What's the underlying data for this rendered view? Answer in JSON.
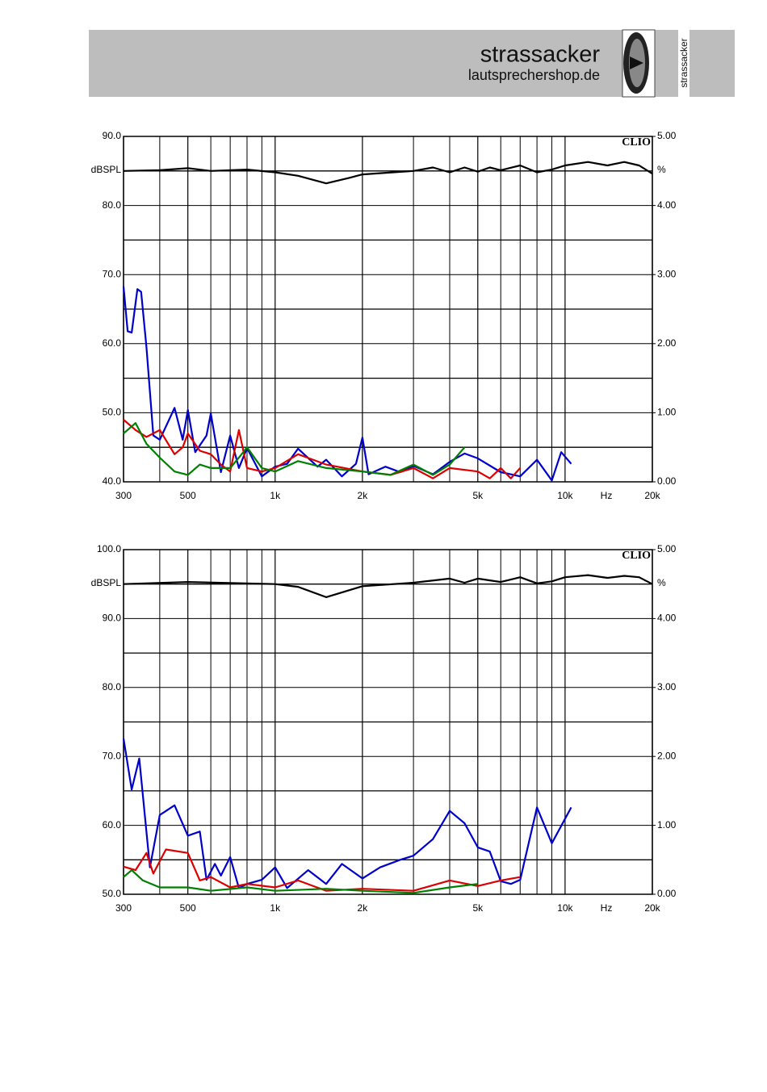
{
  "header": {
    "brand": "strassacker",
    "site": "lautsprechershop.de",
    "vertical_brand": "strassacker"
  },
  "chart_data": [
    {
      "type": "line",
      "watermark": "CLIO",
      "ylabel": "dBSPL",
      "y2label": "%",
      "xunit": "Hz",
      "xlog": true,
      "xlim": [
        300,
        20000
      ],
      "xticks": [
        300,
        500,
        {
          "value": 1000,
          "label": "1k"
        },
        {
          "value": 2000,
          "label": "2k"
        },
        {
          "value": 5000,
          "label": "5k"
        },
        {
          "value": 10000,
          "label": "10k"
        },
        {
          "value": 20000,
          "label": "20k"
        }
      ],
      "xminor": [
        400,
        600,
        700,
        800,
        900,
        3000,
        4000,
        6000,
        7000,
        8000,
        9000
      ],
      "ylim": [
        40,
        90
      ],
      "yticks": [
        {
          "value": 40,
          "label": "40.0"
        },
        {
          "value": 50,
          "label": "50.0"
        },
        {
          "value": 60,
          "label": "60.0"
        },
        {
          "value": 70,
          "label": "70.0"
        },
        {
          "value": 80,
          "label": "80.0"
        },
        {
          "value": 90,
          "label": "90.0"
        }
      ],
      "yminor": [
        45,
        55,
        65,
        75,
        85
      ],
      "y2lim": [
        0,
        5
      ],
      "y2ticks": [
        {
          "value": 0,
          "label": "0.00"
        },
        {
          "value": 1,
          "label": "1.00"
        },
        {
          "value": 2,
          "label": "2.00"
        },
        {
          "value": 3,
          "label": "3.00"
        },
        {
          "value": 4,
          "label": "4.00"
        },
        {
          "value": 5,
          "label": "5.00"
        }
      ],
      "series": [
        {
          "color": "#000000",
          "axis": "y",
          "x": [
            300,
            400,
            500,
            600,
            800,
            1000,
            1200,
            1500,
            1800,
            2000,
            3000,
            3500,
            4000,
            4500,
            5000,
            5500,
            6000,
            7000,
            8000,
            9000,
            10000,
            12000,
            14000,
            16000,
            18000,
            20000
          ],
          "values": [
            85.0,
            85.1,
            85.4,
            85.0,
            85.2,
            84.8,
            84.3,
            83.2,
            84.0,
            84.5,
            85.0,
            85.5,
            84.8,
            85.5,
            84.9,
            85.5,
            85.1,
            85.8,
            84.8,
            85.2,
            85.8,
            86.3,
            85.8,
            86.3,
            85.8,
            84.6
          ]
        },
        {
          "color": "#0000cc",
          "axis": "y2",
          "x": [
            300,
            310,
            320,
            335,
            345,
            360,
            380,
            400,
            450,
            480,
            500,
            530,
            580,
            600,
            650,
            700,
            750,
            800,
            900,
            1000,
            1100,
            1200,
            1400,
            1500,
            1700,
            1900,
            2000,
            2100,
            2400,
            2700,
            3000,
            3500,
            4000,
            4500,
            5000,
            6000,
            7000,
            8000,
            9000,
            9700,
            10500
          ],
          "values": [
            2.83,
            2.18,
            2.16,
            2.79,
            2.75,
            1.95,
            0.67,
            0.61,
            1.07,
            0.61,
            1.04,
            0.43,
            0.67,
            0.99,
            0.14,
            0.67,
            0.2,
            0.49,
            0.08,
            0.22,
            0.26,
            0.48,
            0.22,
            0.32,
            0.08,
            0.26,
            0.64,
            0.11,
            0.22,
            0.14,
            0.23,
            0.11,
            0.29,
            0.41,
            0.34,
            0.14,
            0.08,
            0.32,
            0.02,
            0.43,
            0.26
          ]
        },
        {
          "color": "#dd0000",
          "axis": "y2",
          "x": [
            300,
            330,
            360,
            400,
            450,
            480,
            500,
            550,
            600,
            650,
            700,
            750,
            800,
            900,
            1000,
            1200,
            1500,
            2000,
            2500,
            3000,
            3500,
            4000,
            5000,
            5500,
            6000,
            6500,
            7000
          ],
          "values": [
            0.9,
            0.75,
            0.65,
            0.75,
            0.4,
            0.5,
            0.7,
            0.45,
            0.4,
            0.25,
            0.15,
            0.75,
            0.2,
            0.15,
            0.2,
            0.4,
            0.25,
            0.15,
            0.1,
            0.2,
            0.05,
            0.2,
            0.15,
            0.05,
            0.2,
            0.05,
            0.2
          ]
        },
        {
          "color": "#008000",
          "axis": "y2",
          "x": [
            300,
            330,
            360,
            400,
            450,
            500,
            550,
            600,
            700,
            750,
            800,
            900,
            1000,
            1200,
            1500,
            2000,
            2500,
            3000,
            3500,
            4000,
            4500
          ],
          "values": [
            0.7,
            0.85,
            0.55,
            0.35,
            0.15,
            0.1,
            0.25,
            0.2,
            0.2,
            0.35,
            0.5,
            0.2,
            0.15,
            0.3,
            0.2,
            0.15,
            0.1,
            0.25,
            0.1,
            0.25,
            0.5
          ]
        }
      ]
    },
    {
      "type": "line",
      "watermark": "CLIO",
      "ylabel": "dBSPL",
      "y2label": "%",
      "xunit": "Hz",
      "xlog": true,
      "xlim": [
        300,
        20000
      ],
      "xticks": [
        300,
        500,
        {
          "value": 1000,
          "label": "1k"
        },
        {
          "value": 2000,
          "label": "2k"
        },
        {
          "value": 5000,
          "label": "5k"
        },
        {
          "value": 10000,
          "label": "10k"
        },
        {
          "value": 20000,
          "label": "20k"
        }
      ],
      "xminor": [
        400,
        600,
        700,
        800,
        900,
        3000,
        4000,
        6000,
        7000,
        8000,
        9000
      ],
      "ylim": [
        50,
        100
      ],
      "yticks": [
        {
          "value": 50,
          "label": "50.0"
        },
        {
          "value": 60,
          "label": "60.0"
        },
        {
          "value": 70,
          "label": "70.0"
        },
        {
          "value": 80,
          "label": "80.0"
        },
        {
          "value": 90,
          "label": "90.0"
        },
        {
          "value": 100,
          "label": "100.0"
        }
      ],
      "yminor": [
        55,
        65,
        75,
        85,
        95
      ],
      "y2lim": [
        0,
        5
      ],
      "y2ticks": [
        {
          "value": 0,
          "label": "0.00"
        },
        {
          "value": 1,
          "label": "1.00"
        },
        {
          "value": 2,
          "label": "2.00"
        },
        {
          "value": 3,
          "label": "3.00"
        },
        {
          "value": 4,
          "label": "4.00"
        },
        {
          "value": 5,
          "label": "5.00"
        }
      ],
      "series": [
        {
          "color": "#000000",
          "axis": "y",
          "x": [
            300,
            500,
            1000,
            1200,
            1500,
            2000,
            3000,
            4000,
            4500,
            5000,
            6000,
            7000,
            8000,
            9000,
            10000,
            12000,
            14000,
            16000,
            18000,
            20000
          ],
          "values": [
            95.0,
            95.3,
            95.0,
            94.6,
            93.1,
            94.7,
            95.2,
            95.8,
            95.2,
            95.8,
            95.3,
            96.0,
            95.1,
            95.4,
            96.0,
            96.3,
            95.9,
            96.2,
            96.0,
            95.0
          ]
        },
        {
          "color": "#0000cc",
          "axis": "y2",
          "x": [
            300,
            320,
            340,
            370,
            400,
            450,
            500,
            550,
            580,
            620,
            650,
            700,
            750,
            800,
            900,
            1000,
            1100,
            1300,
            1500,
            1700,
            2000,
            2300,
            2700,
            3000,
            3500,
            4000,
            4500,
            5000,
            5500,
            6000,
            6500,
            7000,
            8000,
            9000,
            10500
          ],
          "values": [
            2.26,
            1.52,
            1.97,
            0.39,
            1.15,
            1.29,
            0.85,
            0.91,
            0.21,
            0.44,
            0.27,
            0.54,
            0.09,
            0.15,
            0.21,
            0.39,
            0.09,
            0.35,
            0.15,
            0.44,
            0.23,
            0.39,
            0.5,
            0.56,
            0.8,
            1.21,
            1.03,
            0.68,
            0.62,
            0.19,
            0.15,
            0.21,
            1.26,
            0.74,
            1.26
          ]
        },
        {
          "color": "#dd0000",
          "axis": "y2",
          "x": [
            300,
            330,
            360,
            380,
            420,
            500,
            550,
            600,
            700,
            800,
            1000,
            1200,
            1500,
            2000,
            3000,
            4000,
            5000,
            6000,
            7000
          ],
          "values": [
            0.4,
            0.35,
            0.6,
            0.3,
            0.65,
            0.6,
            0.2,
            0.25,
            0.1,
            0.15,
            0.1,
            0.2,
            0.05,
            0.08,
            0.05,
            0.2,
            0.12,
            0.2,
            0.25
          ]
        },
        {
          "color": "#008000",
          "axis": "y2",
          "x": [
            300,
            320,
            350,
            400,
            500,
            600,
            800,
            1000,
            1500,
            2000,
            3000,
            4000,
            5000
          ],
          "values": [
            0.25,
            0.35,
            0.2,
            0.1,
            0.1,
            0.05,
            0.1,
            0.05,
            0.08,
            0.05,
            0.02,
            0.1,
            0.15
          ]
        }
      ]
    }
  ]
}
